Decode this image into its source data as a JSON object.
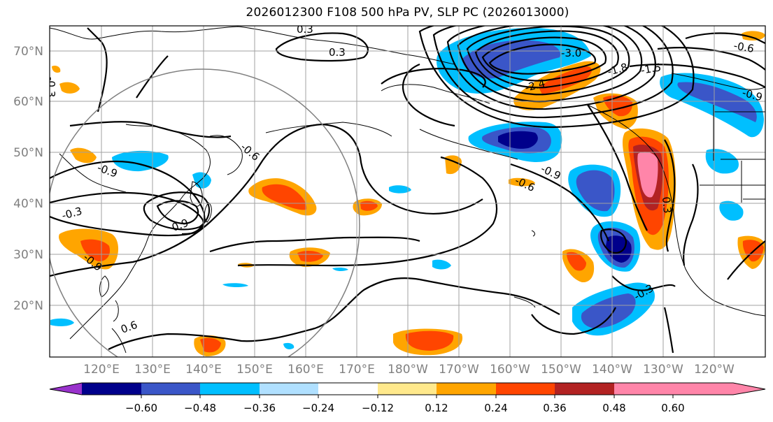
{
  "title": "2026012300 F108 500 hPa PV, SLP PC (2026013000)",
  "map": {
    "lat_labels": [
      "70°N",
      "60°N",
      "50°N",
      "40°N",
      "30°N",
      "20°N"
    ],
    "lon_labels": [
      "120°E",
      "130°E",
      "140°E",
      "150°E",
      "160°E",
      "170°E",
      "180°W",
      "170°W",
      "160°W",
      "150°W",
      "140°W",
      "130°W",
      "120°W"
    ],
    "contour_labels": [
      "0.3",
      "-0.6",
      "-0.9",
      "0.9",
      "-0.3",
      "-0.9",
      "0.6",
      "-0.3",
      "-3.0",
      "-2.4",
      "-1.8",
      "-1.5",
      "-0.9",
      "-0.6",
      "-0.9",
      "-0.6",
      "0.3",
      "-0.3",
      "0.3"
    ]
  },
  "colorbar": {
    "ticks": [
      "−0.60",
      "−0.48",
      "−0.36",
      "−0.24",
      "−0.12",
      "0.12",
      "0.24",
      "0.36",
      "0.48",
      "0.60"
    ],
    "colors": [
      "#9932cc",
      "#00008b",
      "#3a56c8",
      "#00bfff",
      "#b0e0ff",
      "#ffffff",
      "#ffe98c",
      "#ffa500",
      "#ff4500",
      "#b22222",
      "#ff85a9",
      "#ff85a9"
    ]
  }
}
